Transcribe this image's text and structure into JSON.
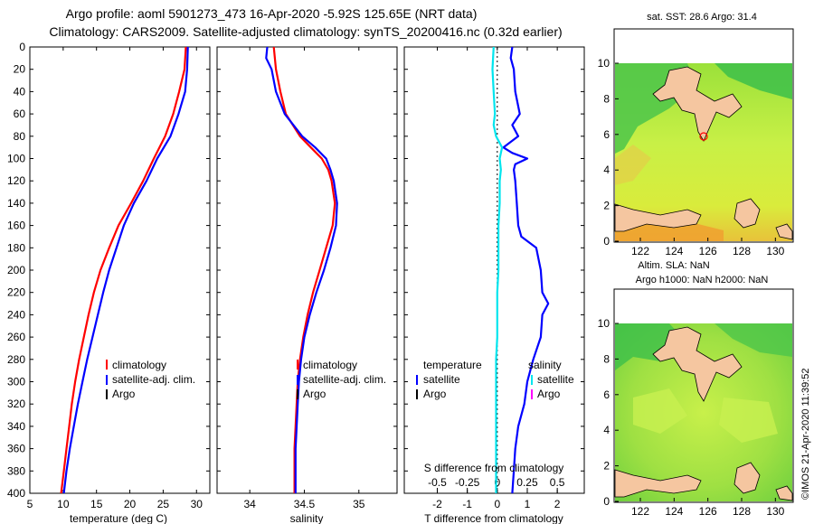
{
  "title_line1": "Argo profile: aoml 5901273_473 16-Apr-2020 -5.92S 125.65E (NRT data)",
  "title_line2": "Climatology: CARS2009. Satellite-adjusted climatology: synTS_20200416.nc (0.32d earlier)",
  "colors": {
    "climatology": "#ff0000",
    "satellite": "#0000ff",
    "argo": "#000000",
    "salinity_diff": "#00e5ee",
    "land": "#f5c6a0"
  },
  "chart_data": [
    {
      "id": "temperature",
      "type": "line",
      "xlabel": "temperature (deg C)",
      "ylabel": "",
      "xlim": [
        5,
        32
      ],
      "ylim": [
        400,
        0
      ],
      "xticks": [
        "5",
        "10",
        "15",
        "20",
        "25",
        "30"
      ],
      "yticks": [
        "0",
        "20",
        "40",
        "60",
        "80",
        "100",
        "120",
        "140",
        "160",
        "180",
        "200",
        "220",
        "240",
        "260",
        "280",
        "300",
        "320",
        "340",
        "360",
        "380",
        "400"
      ],
      "legend": [
        "climatology",
        "satellite-adj. clim.",
        "Argo"
      ],
      "series": [
        {
          "name": "climatology",
          "color": "#ff0000",
          "depth": [
            0,
            20,
            40,
            60,
            80,
            100,
            120,
            140,
            160,
            180,
            200,
            220,
            240,
            260,
            280,
            300,
            320,
            340,
            360,
            380,
            400
          ],
          "values": [
            28.4,
            28.2,
            27.4,
            26.5,
            25.3,
            23.6,
            22.0,
            20.2,
            18.3,
            16.9,
            15.6,
            14.6,
            13.8,
            13.1,
            12.4,
            11.8,
            11.3,
            10.9,
            10.5,
            10.1,
            9.7
          ]
        },
        {
          "name": "satellite-adj. clim.",
          "color": "#0000ff",
          "depth": [
            0,
            20,
            40,
            60,
            80,
            100,
            120,
            140,
            160,
            180,
            200,
            220,
            240,
            260,
            280,
            300,
            320,
            340,
            360,
            380,
            400
          ],
          "values": [
            28.7,
            28.6,
            28.3,
            27.3,
            26.1,
            24.1,
            22.5,
            20.6,
            19.1,
            18.0,
            16.9,
            16.0,
            15.2,
            14.4,
            13.6,
            12.9,
            12.2,
            11.6,
            11.0,
            10.5,
            10.1
          ]
        }
      ]
    },
    {
      "id": "salinity",
      "type": "line",
      "xlabel": "salinity",
      "xlim": [
        33.7,
        35.35
      ],
      "ylim": [
        400,
        0
      ],
      "xticks": [
        "34",
        "34.5",
        "35"
      ],
      "legend": [
        "climatology",
        "satellite-adj. clim.",
        "Argo"
      ],
      "series": [
        {
          "name": "climatology",
          "color": "#ff0000",
          "depth": [
            0,
            20,
            40,
            60,
            80,
            90,
            100,
            110,
            120,
            140,
            160,
            180,
            200,
            220,
            240,
            260,
            280,
            300,
            320,
            340,
            360,
            380,
            400
          ],
          "values": [
            34.22,
            34.24,
            34.28,
            34.33,
            34.46,
            34.56,
            34.66,
            34.72,
            34.75,
            34.78,
            34.76,
            34.7,
            34.64,
            34.58,
            34.53,
            34.49,
            34.46,
            34.44,
            34.43,
            34.42,
            34.41,
            34.41,
            34.41
          ]
        },
        {
          "name": "satellite-adj. clim.",
          "color": "#0000ff",
          "depth": [
            0,
            10,
            20,
            40,
            60,
            80,
            90,
            100,
            110,
            120,
            140,
            160,
            180,
            200,
            220,
            240,
            260,
            280,
            300,
            320,
            340,
            360,
            380,
            400
          ],
          "values": [
            34.16,
            34.15,
            34.2,
            34.24,
            34.32,
            34.48,
            34.6,
            34.7,
            34.74,
            34.77,
            34.8,
            34.79,
            34.74,
            34.68,
            34.61,
            34.55,
            34.5,
            34.47,
            34.45,
            34.44,
            34.43,
            34.42,
            34.42,
            34.42
          ]
        }
      ]
    },
    {
      "id": "difference",
      "type": "line",
      "xlabel": "T difference from climatology",
      "top_axis_label": "S difference from climatology",
      "xlim": [
        -3.1,
        2.9
      ],
      "s_xlim": [
        -0.775,
        0.725
      ],
      "ylim": [
        400,
        0
      ],
      "xticks": [
        "-2",
        "-1",
        "0",
        "1",
        "2"
      ],
      "s_xticks": [
        "-0.5",
        "-0.25",
        "0",
        "0.25",
        "0.5"
      ],
      "legend_left_title": "temperature",
      "legend_right_title": "salinity",
      "legend_left": [
        "satellite",
        "Argo"
      ],
      "legend_right": [
        "satellite",
        "Argo"
      ],
      "series": [
        {
          "name": "T satellite",
          "color": "#0000ff",
          "depth": [
            0,
            10,
            20,
            40,
            60,
            70,
            80,
            90,
            95,
            100,
            105,
            110,
            120,
            140,
            160,
            170,
            180,
            200,
            220,
            230,
            240,
            260,
            280,
            300,
            320,
            340,
            360,
            380,
            400
          ],
          "values": [
            0.5,
            0.45,
            0.55,
            0.6,
            0.75,
            0.5,
            0.7,
            0.2,
            0.5,
            1.0,
            0.6,
            0.55,
            0.6,
            0.65,
            0.7,
            0.8,
            1.3,
            1.45,
            1.5,
            1.7,
            1.5,
            1.45,
            1.2,
            1.0,
            0.9,
            0.7,
            0.6,
            0.55,
            0.5
          ]
        },
        {
          "name": "S satellite",
          "color": "#00e5ee",
          "depth": [
            0,
            20,
            40,
            60,
            70,
            80,
            90,
            100,
            110,
            120,
            140,
            160,
            180,
            200,
            220,
            240,
            260,
            280,
            300,
            320,
            340,
            360,
            380,
            400
          ],
          "values": [
            -0.03,
            -0.04,
            -0.03,
            -0.02,
            -0.03,
            -0.01,
            0.04,
            0.02,
            0.03,
            0.02,
            0.02,
            0.01,
            0.01,
            0.01,
            0.0,
            0.0,
            0.0,
            -0.01,
            -0.01,
            -0.01,
            -0.01,
            -0.01,
            -0.01,
            -0.01
          ]
        }
      ]
    }
  ],
  "maps": [
    {
      "id": "sst-map",
      "title": "sat. SST: 28.6 Argo: 31.4",
      "xticks": [
        "122",
        "124",
        "126",
        "128",
        "130"
      ],
      "yticks": [
        "0",
        "2",
        "4",
        "6",
        "8",
        "10"
      ]
    },
    {
      "id": "sla-map",
      "title_line1": "Altim. SLA: NaN",
      "title_line2": "Argo h1000: NaN h2000: NaN",
      "xticks": [
        "122",
        "124",
        "126",
        "128",
        "130"
      ],
      "yticks": [
        "0",
        "2",
        "4",
        "6",
        "8",
        "10"
      ]
    }
  ],
  "watermark": "©IMOS 21-Apr-2020 11:39:52"
}
